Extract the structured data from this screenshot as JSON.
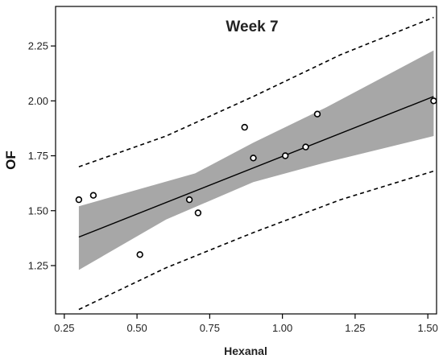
{
  "chart_data": {
    "type": "scatter",
    "title": "Week 7",
    "xlabel": "Hexanal",
    "ylabel": "OF",
    "xlim": [
      0.22,
      1.53
    ],
    "ylim": [
      1.03,
      2.43
    ],
    "xticks": [
      0.25,
      0.5,
      0.75,
      1.0,
      1.25,
      1.5
    ],
    "xtick_labels": [
      "0.25",
      "0.50",
      "0.75",
      "1.00",
      "1.25",
      "1.50"
    ],
    "yticks": [
      1.25,
      1.5,
      1.75,
      2.0,
      2.25
    ],
    "ytick_labels": [
      "1.25",
      "1.50",
      "1.75",
      "2.00",
      "2.25"
    ],
    "grid": false,
    "points": [
      {
        "x": 0.3,
        "y": 1.55
      },
      {
        "x": 0.35,
        "y": 1.57
      },
      {
        "x": 0.51,
        "y": 1.3
      },
      {
        "x": 0.68,
        "y": 1.55
      },
      {
        "x": 0.71,
        "y": 1.49
      },
      {
        "x": 0.87,
        "y": 1.88
      },
      {
        "x": 0.9,
        "y": 1.74
      },
      {
        "x": 1.01,
        "y": 1.75
      },
      {
        "x": 1.08,
        "y": 1.79
      },
      {
        "x": 1.12,
        "y": 1.94
      },
      {
        "x": 1.52,
        "y": 2.0
      }
    ],
    "fit_line": [
      {
        "x": 0.3,
        "y": 1.38
      },
      {
        "x": 1.52,
        "y": 2.02
      }
    ],
    "confidence_band": {
      "upper": [
        {
          "x": 0.3,
          "y": 1.52
        },
        {
          "x": 0.7,
          "y": 1.67
        },
        {
          "x": 0.9,
          "y": 1.81
        },
        {
          "x": 1.15,
          "y": 1.97
        },
        {
          "x": 1.52,
          "y": 2.23
        }
      ],
      "lower": [
        {
          "x": 0.3,
          "y": 1.23
        },
        {
          "x": 0.6,
          "y": 1.46
        },
        {
          "x": 0.9,
          "y": 1.63
        },
        {
          "x": 1.15,
          "y": 1.72
        },
        {
          "x": 1.52,
          "y": 1.84
        }
      ]
    },
    "prediction_band": {
      "upper": [
        {
          "x": 0.3,
          "y": 1.7
        },
        {
          "x": 0.6,
          "y": 1.84
        },
        {
          "x": 0.9,
          "y": 2.02
        },
        {
          "x": 1.2,
          "y": 2.21
        },
        {
          "x": 1.52,
          "y": 2.38
        }
      ],
      "lower": [
        {
          "x": 0.3,
          "y": 1.05
        },
        {
          "x": 0.6,
          "y": 1.24
        },
        {
          "x": 0.9,
          "y": 1.4
        },
        {
          "x": 1.2,
          "y": 1.55
        },
        {
          "x": 1.52,
          "y": 1.68
        }
      ]
    }
  }
}
